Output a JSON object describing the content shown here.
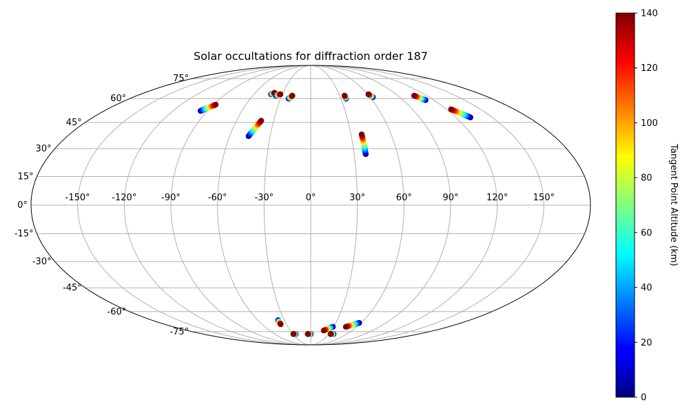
{
  "chart_data": {
    "type": "scatter",
    "projection": "mollweide",
    "title": "Solar occultations for diffraction order 187",
    "grid": true,
    "lon_ticks": [
      -150,
      -120,
      -90,
      -60,
      -30,
      0,
      30,
      60,
      90,
      120,
      150
    ],
    "lat_ticks": [
      -75,
      -60,
      -45,
      -30,
      -15,
      0,
      15,
      30,
      45,
      60,
      75
    ],
    "colorbar": {
      "label": "Tangent Point Altitude (km)",
      "range": [
        0,
        140
      ],
      "ticks": [
        0,
        20,
        40,
        60,
        80,
        100,
        120,
        140
      ],
      "colormap": "jet",
      "position": "right"
    },
    "series": [
      {
        "lon_start": -96,
        "lat_start": 52,
        "lon_end": -88,
        "lat_end": 56,
        "alt_start": 0,
        "alt_end": 140
      },
      {
        "lon_start": -46,
        "lat_start": 37,
        "lon_end": -40,
        "lat_end": 46,
        "alt_start": 0,
        "alt_end": 140
      },
      {
        "lon_start": -42,
        "lat_start": 63,
        "lon_end": -39,
        "lat_end": 64,
        "alt_start": 0,
        "alt_end": 140
      },
      {
        "lon_start": -36,
        "lat_start": 62,
        "lon_end": -32,
        "lat_end": 63,
        "alt_start": 0,
        "alt_end": 140
      },
      {
        "lon_start": -22,
        "lat_start": 60,
        "lon_end": -19,
        "lat_end": 62,
        "alt_start": 0,
        "alt_end": 140
      },
      {
        "lon_start": 35,
        "lat_start": 60,
        "lon_end": 35,
        "lat_end": 62,
        "alt_start": 0,
        "alt_end": 140
      },
      {
        "lon_start": 38,
        "lat_start": 27,
        "lon_end": 38,
        "lat_end": 38,
        "alt_start": 0,
        "alt_end": 140
      },
      {
        "lon_start": 63,
        "lat_start": 61,
        "lon_end": 61,
        "lat_end": 63,
        "alt_start": 0,
        "alt_end": 140
      },
      {
        "lon_start": 112,
        "lat_start": 59,
        "lon_end": 107,
        "lat_end": 62,
        "alt_start": 0,
        "alt_end": 140
      },
      {
        "lon_start": 132,
        "lat_start": 48,
        "lon_end": 124,
        "lat_end": 53,
        "alt_start": 0,
        "alt_end": 140
      },
      {
        "lon_start": -37,
        "lat_start": -66,
        "lon_end": -37,
        "lat_end": -69,
        "alt_start": 0,
        "alt_end": 140
      },
      {
        "lon_start": -25,
        "lat_start": -77,
        "lon_end": -29,
        "lat_end": -77,
        "alt_start": 0,
        "alt_end": 140
      },
      {
        "lon_start": 0,
        "lat_start": -77,
        "lon_end": -5,
        "lat_end": -77,
        "alt_start": 0,
        "alt_end": 140
      },
      {
        "lon_start": 29,
        "lat_start": -71,
        "lon_end": 19,
        "lat_end": -74,
        "alt_start": 0,
        "alt_end": 140
      },
      {
        "lon_start": 38,
        "lat_start": -77,
        "lon_end": 33,
        "lat_end": -77,
        "alt_start": 0,
        "alt_end": 140
      },
      {
        "lon_start": 58,
        "lat_start": -68,
        "lon_end": 46,
        "lat_end": -71,
        "alt_start": 0,
        "alt_end": 140
      }
    ]
  }
}
